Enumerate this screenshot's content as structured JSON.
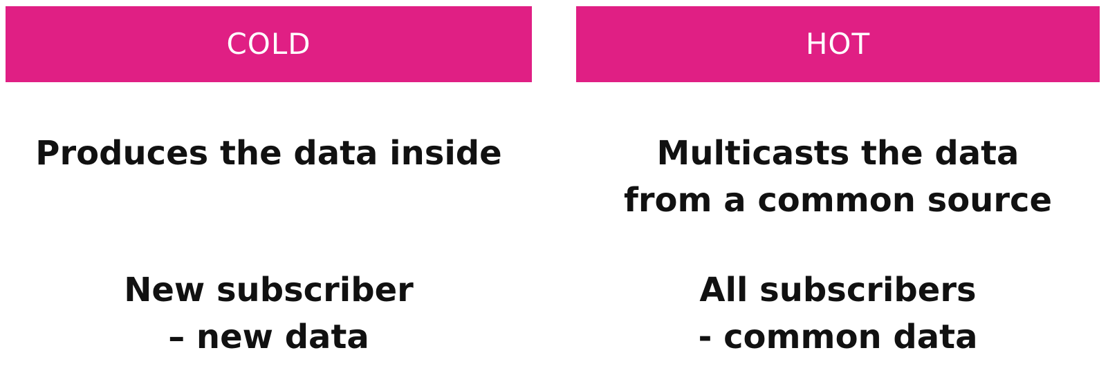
{
  "colors": {
    "header_background": "#e01f84",
    "header_text": "#ffffff",
    "body_text": "#111111",
    "page_background": "#ffffff"
  },
  "columns": [
    {
      "header": "COLD",
      "statement_1": [
        "Produces the data inside"
      ],
      "statement_2": [
        "New subscriber",
        "– new data"
      ]
    },
    {
      "header": "HOT",
      "statement_1": [
        "Multicasts the data",
        "from a common source"
      ],
      "statement_2": [
        "All subscribers",
        "- common data"
      ]
    }
  ]
}
